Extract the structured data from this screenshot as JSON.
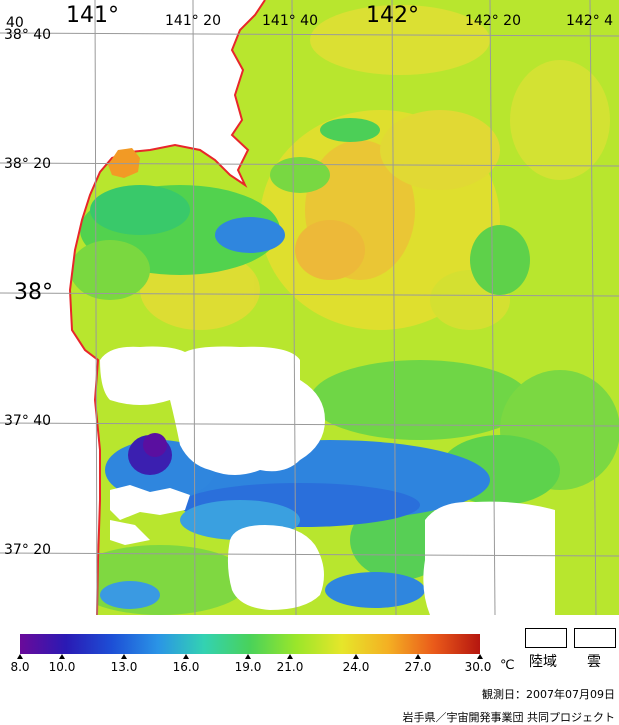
{
  "map": {
    "lon_labels": {
      "l141": "141°",
      "l141_20": "141° 20",
      "l141_40": "141° 40",
      "l142": "142°",
      "l142_20": "142° 20",
      "l142_40": "142° 4",
      "left_cut": "40"
    },
    "lat_labels": {
      "l38_40": "38° 40",
      "l38_20": "38° 20",
      "l38": "38°",
      "l37_40": "37° 40",
      "l37_20": "37° 20"
    },
    "colors": {
      "coastline": "#e8262a",
      "grid": "#9a9a9a",
      "cloud": "#ffffff",
      "land": "#ffffff"
    }
  },
  "legend": {
    "colorbar_stops": [
      "#6a0a9a",
      "#2a1ab4",
      "#1d4fd6",
      "#2a94e6",
      "#33d2b2",
      "#49d25a",
      "#9ae62a",
      "#e6e62a",
      "#f4b023",
      "#ea5a1a",
      "#b5160f"
    ],
    "ticks": [
      "8.0",
      "10.0",
      "13.0",
      "16.0",
      "19.0",
      "21.0",
      "24.0",
      "27.0",
      "30.0"
    ],
    "unit": "℃",
    "land_label": "陸域",
    "cloud_label": "雲"
  },
  "footer": {
    "observation_date": "観測日：2007年07月09日",
    "credit": "岩手県／宇宙開発事業団 共同プロジェクト"
  }
}
